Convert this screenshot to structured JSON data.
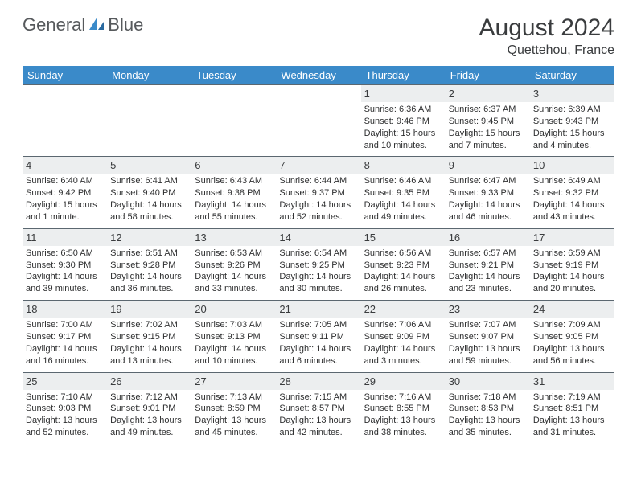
{
  "logo": {
    "part1": "General",
    "part2": "Blue"
  },
  "title": "August 2024",
  "location": "Quettehou, France",
  "colors": {
    "header_bg": "#3a8ac9",
    "header_text": "#ffffff",
    "daynum_bg": "#eceeef",
    "text": "#3a3c3e",
    "rule": "#5b6770",
    "page_bg": "#ffffff"
  },
  "fonts": {
    "title_size": 30,
    "location_size": 16,
    "dow_size": 13,
    "daynum_size": 13,
    "body_size": 11
  },
  "dow": [
    "Sunday",
    "Monday",
    "Tuesday",
    "Wednesday",
    "Thursday",
    "Friday",
    "Saturday"
  ],
  "weeks": [
    {
      "nums": [
        "",
        "",
        "",
        "",
        "1",
        "2",
        "3"
      ],
      "cells": [
        {
          "sr": "",
          "ss": "",
          "dl": ""
        },
        {
          "sr": "",
          "ss": "",
          "dl": ""
        },
        {
          "sr": "",
          "ss": "",
          "dl": ""
        },
        {
          "sr": "",
          "ss": "",
          "dl": ""
        },
        {
          "sr": "Sunrise: 6:36 AM",
          "ss": "Sunset: 9:46 PM",
          "dl": "Daylight: 15 hours and 10 minutes."
        },
        {
          "sr": "Sunrise: 6:37 AM",
          "ss": "Sunset: 9:45 PM",
          "dl": "Daylight: 15 hours and 7 minutes."
        },
        {
          "sr": "Sunrise: 6:39 AM",
          "ss": "Sunset: 9:43 PM",
          "dl": "Daylight: 15 hours and 4 minutes."
        }
      ]
    },
    {
      "nums": [
        "4",
        "5",
        "6",
        "7",
        "8",
        "9",
        "10"
      ],
      "cells": [
        {
          "sr": "Sunrise: 6:40 AM",
          "ss": "Sunset: 9:42 PM",
          "dl": "Daylight: 15 hours and 1 minute."
        },
        {
          "sr": "Sunrise: 6:41 AM",
          "ss": "Sunset: 9:40 PM",
          "dl": "Daylight: 14 hours and 58 minutes."
        },
        {
          "sr": "Sunrise: 6:43 AM",
          "ss": "Sunset: 9:38 PM",
          "dl": "Daylight: 14 hours and 55 minutes."
        },
        {
          "sr": "Sunrise: 6:44 AM",
          "ss": "Sunset: 9:37 PM",
          "dl": "Daylight: 14 hours and 52 minutes."
        },
        {
          "sr": "Sunrise: 6:46 AM",
          "ss": "Sunset: 9:35 PM",
          "dl": "Daylight: 14 hours and 49 minutes."
        },
        {
          "sr": "Sunrise: 6:47 AM",
          "ss": "Sunset: 9:33 PM",
          "dl": "Daylight: 14 hours and 46 minutes."
        },
        {
          "sr": "Sunrise: 6:49 AM",
          "ss": "Sunset: 9:32 PM",
          "dl": "Daylight: 14 hours and 43 minutes."
        }
      ]
    },
    {
      "nums": [
        "11",
        "12",
        "13",
        "14",
        "15",
        "16",
        "17"
      ],
      "cells": [
        {
          "sr": "Sunrise: 6:50 AM",
          "ss": "Sunset: 9:30 PM",
          "dl": "Daylight: 14 hours and 39 minutes."
        },
        {
          "sr": "Sunrise: 6:51 AM",
          "ss": "Sunset: 9:28 PM",
          "dl": "Daylight: 14 hours and 36 minutes."
        },
        {
          "sr": "Sunrise: 6:53 AM",
          "ss": "Sunset: 9:26 PM",
          "dl": "Daylight: 14 hours and 33 minutes."
        },
        {
          "sr": "Sunrise: 6:54 AM",
          "ss": "Sunset: 9:25 PM",
          "dl": "Daylight: 14 hours and 30 minutes."
        },
        {
          "sr": "Sunrise: 6:56 AM",
          "ss": "Sunset: 9:23 PM",
          "dl": "Daylight: 14 hours and 26 minutes."
        },
        {
          "sr": "Sunrise: 6:57 AM",
          "ss": "Sunset: 9:21 PM",
          "dl": "Daylight: 14 hours and 23 minutes."
        },
        {
          "sr": "Sunrise: 6:59 AM",
          "ss": "Sunset: 9:19 PM",
          "dl": "Daylight: 14 hours and 20 minutes."
        }
      ]
    },
    {
      "nums": [
        "18",
        "19",
        "20",
        "21",
        "22",
        "23",
        "24"
      ],
      "cells": [
        {
          "sr": "Sunrise: 7:00 AM",
          "ss": "Sunset: 9:17 PM",
          "dl": "Daylight: 14 hours and 16 minutes."
        },
        {
          "sr": "Sunrise: 7:02 AM",
          "ss": "Sunset: 9:15 PM",
          "dl": "Daylight: 14 hours and 13 minutes."
        },
        {
          "sr": "Sunrise: 7:03 AM",
          "ss": "Sunset: 9:13 PM",
          "dl": "Daylight: 14 hours and 10 minutes."
        },
        {
          "sr": "Sunrise: 7:05 AM",
          "ss": "Sunset: 9:11 PM",
          "dl": "Daylight: 14 hours and 6 minutes."
        },
        {
          "sr": "Sunrise: 7:06 AM",
          "ss": "Sunset: 9:09 PM",
          "dl": "Daylight: 14 hours and 3 minutes."
        },
        {
          "sr": "Sunrise: 7:07 AM",
          "ss": "Sunset: 9:07 PM",
          "dl": "Daylight: 13 hours and 59 minutes."
        },
        {
          "sr": "Sunrise: 7:09 AM",
          "ss": "Sunset: 9:05 PM",
          "dl": "Daylight: 13 hours and 56 minutes."
        }
      ]
    },
    {
      "nums": [
        "25",
        "26",
        "27",
        "28",
        "29",
        "30",
        "31"
      ],
      "cells": [
        {
          "sr": "Sunrise: 7:10 AM",
          "ss": "Sunset: 9:03 PM",
          "dl": "Daylight: 13 hours and 52 minutes."
        },
        {
          "sr": "Sunrise: 7:12 AM",
          "ss": "Sunset: 9:01 PM",
          "dl": "Daylight: 13 hours and 49 minutes."
        },
        {
          "sr": "Sunrise: 7:13 AM",
          "ss": "Sunset: 8:59 PM",
          "dl": "Daylight: 13 hours and 45 minutes."
        },
        {
          "sr": "Sunrise: 7:15 AM",
          "ss": "Sunset: 8:57 PM",
          "dl": "Daylight: 13 hours and 42 minutes."
        },
        {
          "sr": "Sunrise: 7:16 AM",
          "ss": "Sunset: 8:55 PM",
          "dl": "Daylight: 13 hours and 38 minutes."
        },
        {
          "sr": "Sunrise: 7:18 AM",
          "ss": "Sunset: 8:53 PM",
          "dl": "Daylight: 13 hours and 35 minutes."
        },
        {
          "sr": "Sunrise: 7:19 AM",
          "ss": "Sunset: 8:51 PM",
          "dl": "Daylight: 13 hours and 31 minutes."
        }
      ]
    }
  ]
}
